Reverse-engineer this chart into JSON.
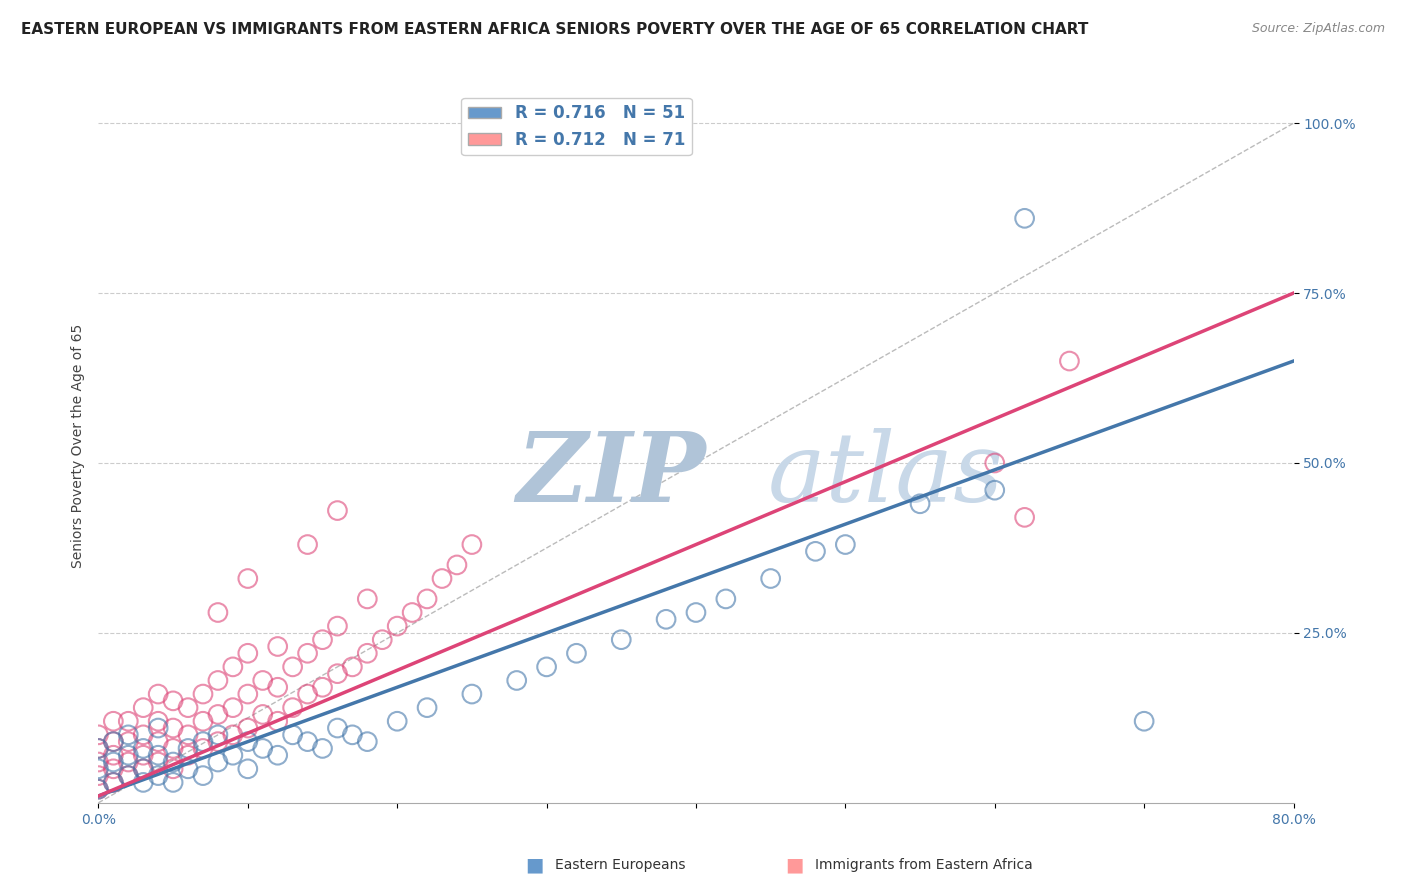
{
  "title": "EASTERN EUROPEAN VS IMMIGRANTS FROM EASTERN AFRICA SENIORS POVERTY OVER THE AGE OF 65 CORRELATION CHART",
  "source": "Source: ZipAtlas.com",
  "ylabel": "Seniors Poverty Over the Age of 65",
  "xlim": [
    0.0,
    0.8
  ],
  "ylim": [
    0.0,
    1.05
  ],
  "xtick_labels": [
    "0.0%",
    "",
    "",
    "",
    "",
    "",
    "",
    "",
    "80.0%"
  ],
  "xtick_values": [
    0.0,
    0.1,
    0.2,
    0.3,
    0.4,
    0.5,
    0.6,
    0.7,
    0.8
  ],
  "ytick_labels": [
    "25.0%",
    "50.0%",
    "75.0%",
    "100.0%"
  ],
  "ytick_values": [
    0.25,
    0.5,
    0.75,
    1.0
  ],
  "blue_color": "#6699CC",
  "pink_color": "#FF9999",
  "blue_edge_color": "#4477AA",
  "pink_edge_color": "#DD4477",
  "blue_label": "Eastern Europeans",
  "pink_label": "Immigrants from Eastern Africa",
  "blue_R": 0.716,
  "blue_N": 51,
  "pink_R": 0.712,
  "pink_N": 71,
  "blue_line_x0": 0.0,
  "blue_line_y0": 0.01,
  "blue_line_x1": 0.8,
  "blue_line_y1": 0.65,
  "pink_line_x0": 0.0,
  "pink_line_y0": 0.01,
  "pink_line_x1": 0.8,
  "pink_line_y1": 0.75,
  "diag_line_x0": 0.0,
  "diag_line_y0": 0.0,
  "diag_line_x1": 0.8,
  "diag_line_y1": 1.0,
  "watermark_zip": "ZIP",
  "watermark_atlas": "atlas",
  "watermark_color": "#C8D8E8",
  "background_color": "#FFFFFF",
  "grid_color": "#CCCCCC",
  "title_fontsize": 11,
  "axis_label_fontsize": 10,
  "tick_fontsize": 10,
  "legend_fontsize": 12,
  "source_fontsize": 9,
  "blue_x": [
    0.0,
    0.0,
    0.0,
    0.01,
    0.01,
    0.01,
    0.02,
    0.02,
    0.02,
    0.03,
    0.03,
    0.03,
    0.04,
    0.04,
    0.04,
    0.05,
    0.05,
    0.06,
    0.06,
    0.07,
    0.07,
    0.08,
    0.08,
    0.09,
    0.1,
    0.1,
    0.11,
    0.12,
    0.13,
    0.14,
    0.15,
    0.16,
    0.17,
    0.18,
    0.2,
    0.22,
    0.25,
    0.28,
    0.3,
    0.32,
    0.35,
    0.38,
    0.4,
    0.42,
    0.45,
    0.48,
    0.5,
    0.55,
    0.6,
    0.62,
    0.7
  ],
  "blue_y": [
    0.02,
    0.05,
    0.08,
    0.03,
    0.06,
    0.09,
    0.04,
    0.07,
    0.1,
    0.03,
    0.05,
    0.08,
    0.04,
    0.07,
    0.11,
    0.03,
    0.06,
    0.05,
    0.08,
    0.04,
    0.09,
    0.06,
    0.1,
    0.07,
    0.05,
    0.09,
    0.08,
    0.07,
    0.1,
    0.09,
    0.08,
    0.11,
    0.1,
    0.09,
    0.12,
    0.14,
    0.16,
    0.18,
    0.2,
    0.22,
    0.24,
    0.27,
    0.28,
    0.3,
    0.33,
    0.37,
    0.38,
    0.44,
    0.46,
    0.86,
    0.12
  ],
  "pink_x": [
    0.0,
    0.0,
    0.0,
    0.0,
    0.0,
    0.01,
    0.01,
    0.01,
    0.01,
    0.01,
    0.02,
    0.02,
    0.02,
    0.02,
    0.03,
    0.03,
    0.03,
    0.03,
    0.04,
    0.04,
    0.04,
    0.04,
    0.05,
    0.05,
    0.05,
    0.05,
    0.06,
    0.06,
    0.06,
    0.07,
    0.07,
    0.07,
    0.08,
    0.08,
    0.08,
    0.09,
    0.09,
    0.09,
    0.1,
    0.1,
    0.1,
    0.11,
    0.11,
    0.12,
    0.12,
    0.12,
    0.13,
    0.13,
    0.14,
    0.14,
    0.15,
    0.15,
    0.16,
    0.16,
    0.17,
    0.18,
    0.18,
    0.19,
    0.2,
    0.21,
    0.22,
    0.23,
    0.24,
    0.25,
    0.08,
    0.1,
    0.14,
    0.16,
    0.6,
    0.62,
    0.65
  ],
  "pink_y": [
    0.02,
    0.04,
    0.06,
    0.08,
    0.1,
    0.03,
    0.05,
    0.07,
    0.09,
    0.12,
    0.04,
    0.06,
    0.09,
    0.12,
    0.05,
    0.07,
    0.1,
    0.14,
    0.06,
    0.09,
    0.12,
    0.16,
    0.05,
    0.08,
    0.11,
    0.15,
    0.07,
    0.1,
    0.14,
    0.08,
    0.12,
    0.16,
    0.09,
    0.13,
    0.18,
    0.1,
    0.14,
    0.2,
    0.11,
    0.16,
    0.22,
    0.13,
    0.18,
    0.12,
    0.17,
    0.23,
    0.14,
    0.2,
    0.16,
    0.22,
    0.17,
    0.24,
    0.19,
    0.26,
    0.2,
    0.22,
    0.3,
    0.24,
    0.26,
    0.28,
    0.3,
    0.33,
    0.35,
    0.38,
    0.28,
    0.33,
    0.38,
    0.43,
    0.5,
    0.42,
    0.65
  ]
}
